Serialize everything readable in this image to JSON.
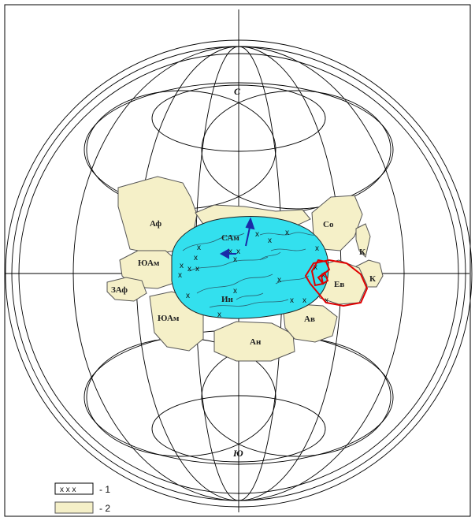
{
  "poles": {
    "north": "С",
    "south": "Ю"
  },
  "continents": {
    "af": "Аф",
    "sam": "САм",
    "yuam_upper": "ЮАм",
    "yuam_lower": "ЮАм",
    "zaf": "ЗАф",
    "in": "Ин",
    "an": "Ан",
    "av": "Ав",
    "so": "Со",
    "k_upper": "К",
    "k_lower": "К",
    "ev": "Ев"
  },
  "legend": {
    "item1": {
      "symbol": "x x x",
      "label": "- 1"
    },
    "item2": {
      "label": "- 2"
    }
  },
  "colors": {
    "land": "#f5f0c8",
    "ocean_region": "#33e0ee",
    "highlight": "#e00000",
    "arrow": "#1a2aa8",
    "grid": "#000000"
  }
}
